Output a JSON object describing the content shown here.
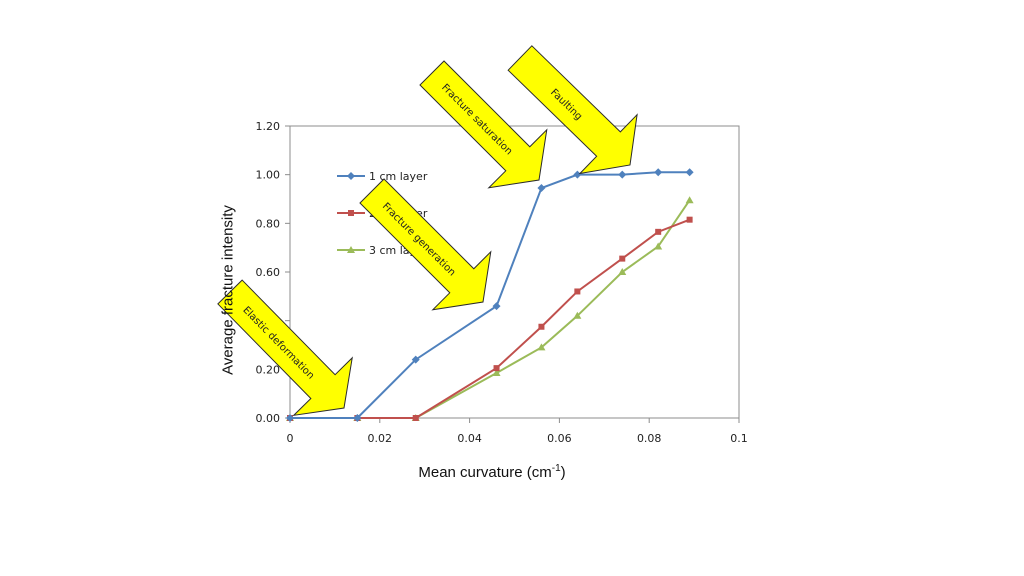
{
  "chart_data": {
    "type": "line",
    "title": "",
    "xlabel": "Mean curvature (cm",
    "xlabel_sup": "-1",
    "xlabel_end": ")",
    "ylabel": "Average fracture intensity",
    "xlim": [
      0,
      0.1
    ],
    "ylim": [
      0,
      1.2
    ],
    "xticks": [
      "0",
      "0.02",
      "0.04",
      "0.06",
      "0.08",
      "0.1"
    ],
    "xtick_values": [
      0,
      0.02,
      0.04,
      0.06,
      0.08,
      0.1
    ],
    "yticks": [
      "0.00",
      "0.20",
      "0.40",
      "0.60",
      "0.80",
      "1.00",
      "1.20"
    ],
    "ytick_values": [
      0,
      0.2,
      0.4,
      0.6,
      0.8,
      1.0,
      1.2
    ],
    "grid": false,
    "legend_position": "upper-left",
    "series": [
      {
        "name": "1 cm layer",
        "color": "#4f81bd",
        "marker": "diamond",
        "x": [
          0,
          0.015,
          0.028,
          0.046,
          0.056,
          0.064,
          0.074,
          0.082,
          0.089
        ],
        "y": [
          0,
          0,
          0.24,
          0.46,
          0.945,
          1.0,
          1.0,
          1.01,
          1.01
        ]
      },
      {
        "name": "2 cm layer",
        "color": "#c0504d",
        "marker": "square",
        "x": [
          0,
          0.015,
          0.028,
          0.046,
          0.056,
          0.064,
          0.074,
          0.082,
          0.089
        ],
        "y": [
          0,
          0,
          0,
          0.205,
          0.375,
          0.52,
          0.655,
          0.765,
          0.815
        ]
      },
      {
        "name": "3 cm layer",
        "color": "#9bbb59",
        "marker": "triangle",
        "x": [
          0,
          0.015,
          0.028,
          0.046,
          0.056,
          0.064,
          0.074,
          0.082,
          0.089
        ],
        "y": [
          0,
          0,
          0,
          0.185,
          0.29,
          0.42,
          0.6,
          0.705,
          0.895
        ]
      }
    ],
    "annotations": [
      {
        "id": "elastic",
        "text": "Elastic deformation"
      },
      {
        "id": "generation",
        "text": "Fracture generation"
      },
      {
        "id": "saturation",
        "text": "Fracture saturation"
      },
      {
        "id": "faulting",
        "text": "Faulting"
      }
    ],
    "arrow_color": "#ffff00"
  }
}
